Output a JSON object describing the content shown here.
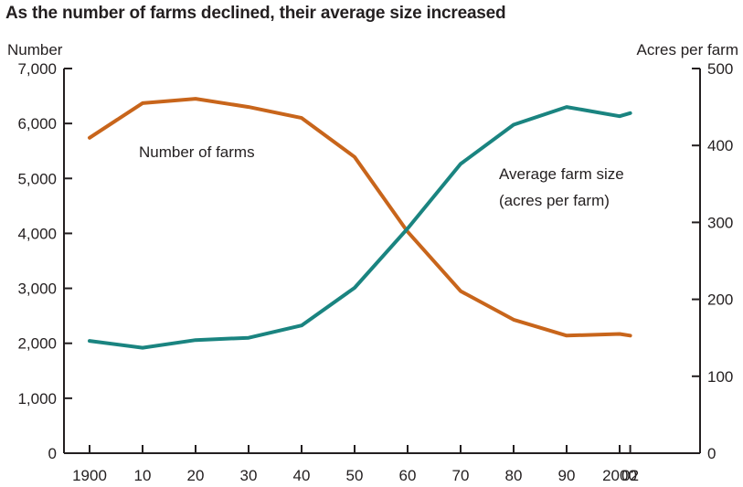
{
  "chart_data": {
    "type": "line",
    "title": "As the number of farms declined, their average size increased",
    "y_left_label": "Number",
    "y_right_label": "Acres per farm",
    "x_ticks": [
      "1900",
      "10",
      "20",
      "30",
      "40",
      "50",
      "60",
      "70",
      "80",
      "90",
      "2000",
      "02"
    ],
    "y_left_ticks": [
      "0",
      "1,000",
      "2,000",
      "3,000",
      "4,000",
      "5,000",
      "6,000",
      "7,000"
    ],
    "y_right_ticks": [
      "0",
      "100",
      "200",
      "300",
      "400",
      "500"
    ],
    "ylim_left": [
      0,
      7000
    ],
    "ylim_right": [
      0,
      500
    ],
    "x": [
      1900,
      1910,
      1920,
      1930,
      1940,
      1950,
      1960,
      1970,
      1980,
      1990,
      2000,
      2002
    ],
    "series": [
      {
        "name": "Number of farms",
        "axis": "left",
        "color": "#c8651b",
        "values": [
          5740,
          6370,
          6450,
          6300,
          6100,
          5390,
          4030,
          2950,
          2430,
          2140,
          2170,
          2140
        ]
      },
      {
        "name": "Average farm size (acres per farm)",
        "axis": "right",
        "color": "#1a8480",
        "values": [
          146,
          137,
          147,
          150,
          166,
          215,
          292,
          376,
          427,
          450,
          438,
          442
        ]
      }
    ],
    "annotations": [
      {
        "text": "Number of farms"
      },
      {
        "text": "Average farm size"
      },
      {
        "text": "(acres per farm)"
      }
    ],
    "grid": false,
    "legend": "none (direct labels)"
  }
}
